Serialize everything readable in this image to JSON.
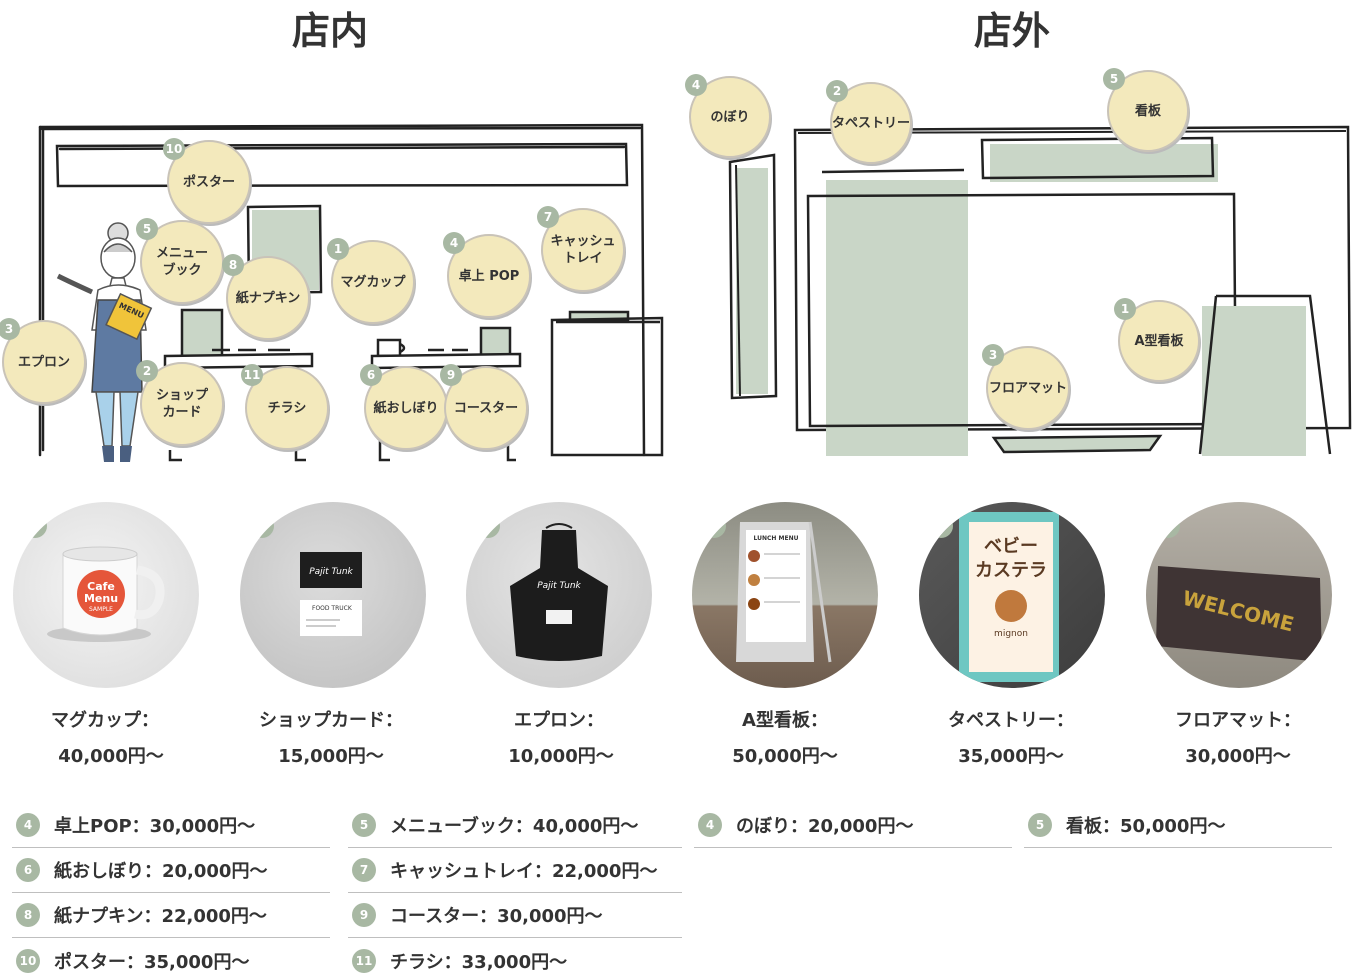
{
  "sections": {
    "inside": "店内",
    "outside": "店外"
  },
  "inside_bubbles": [
    {
      "num": "10",
      "label": "ポスター"
    },
    {
      "num": "5",
      "label": "メニュー\nブック"
    },
    {
      "num": "8",
      "label": "紙ナプキン"
    },
    {
      "num": "1",
      "label": "マグカップ"
    },
    {
      "num": "4",
      "label": "卓上 POP"
    },
    {
      "num": "7",
      "label": "キャッシュ\nトレイ"
    },
    {
      "num": "3",
      "label": "エプロン"
    },
    {
      "num": "2",
      "label": "ショップ\nカード"
    },
    {
      "num": "11",
      "label": "チラシ"
    },
    {
      "num": "6",
      "label": "紙おしぼり"
    },
    {
      "num": "9",
      "label": "コースター"
    }
  ],
  "outside_bubbles": [
    {
      "num": "4",
      "label": "のぼり"
    },
    {
      "num": "2",
      "label": "タペストリー"
    },
    {
      "num": "5",
      "label": "看板"
    },
    {
      "num": "1",
      "label": "A型看板"
    },
    {
      "num": "3",
      "label": "フロアマット"
    }
  ],
  "apron_text": "MENU",
  "featured": [
    {
      "num": "1",
      "name": "マグカップ：",
      "price": "40,000円〜",
      "image": "mug-photo",
      "mug_logo": [
        "Cafe",
        "Menu",
        "SAMPLE"
      ]
    },
    {
      "num": "2",
      "name": "ショップカード：",
      "price": "15,000円〜",
      "image": "shop-card-photo",
      "card_text": [
        "Pajit Tunk",
        "FOOD TRUCK"
      ]
    },
    {
      "num": "3",
      "name": "エプロン：",
      "price": "10,000円〜",
      "image": "apron-photo",
      "apron_logo": "Pajit Tunk"
    },
    {
      "num": "1",
      "name": "A型看板：",
      "price": "50,000円〜",
      "image": "a-frame-sign-photo",
      "sign_text": "LUNCH MENU"
    },
    {
      "num": "2",
      "name": "タペストリー：",
      "price": "35,000円〜",
      "image": "tapestry-photo",
      "tapestry_text": [
        "ベビー",
        "カステラ",
        "mignon"
      ]
    },
    {
      "num": "3",
      "name": "フロアマット：",
      "price": "30,000円〜",
      "image": "floor-mat-photo",
      "mat_text": "WELCOME"
    }
  ],
  "list_col1": [
    {
      "num": "4",
      "text": "卓上POP：30,000円〜"
    },
    {
      "num": "6",
      "text": "紙おしぼり：20,000円〜"
    },
    {
      "num": "8",
      "text": "紙ナプキン：22,000円〜"
    },
    {
      "num": "10",
      "text": "ポスター：35,000円〜"
    }
  ],
  "list_col2": [
    {
      "num": "5",
      "text": "メニューブック：40,000円〜"
    },
    {
      "num": "7",
      "text": "キャッシュトレイ：22,000円〜"
    },
    {
      "num": "9",
      "text": "コースター：30,000円〜"
    },
    {
      "num": "11",
      "text": "チラシ：33,000円〜"
    }
  ],
  "list_col3": [
    {
      "num": "4",
      "text": "のぼり：20,000円〜"
    }
  ],
  "list_col4": [
    {
      "num": "5",
      "text": "看板：50,000円〜"
    }
  ],
  "colors": {
    "sage": "#c9d6c7",
    "bubble": "#f3e9bc",
    "badge": "#a8b8a3",
    "ink": "#222222"
  }
}
